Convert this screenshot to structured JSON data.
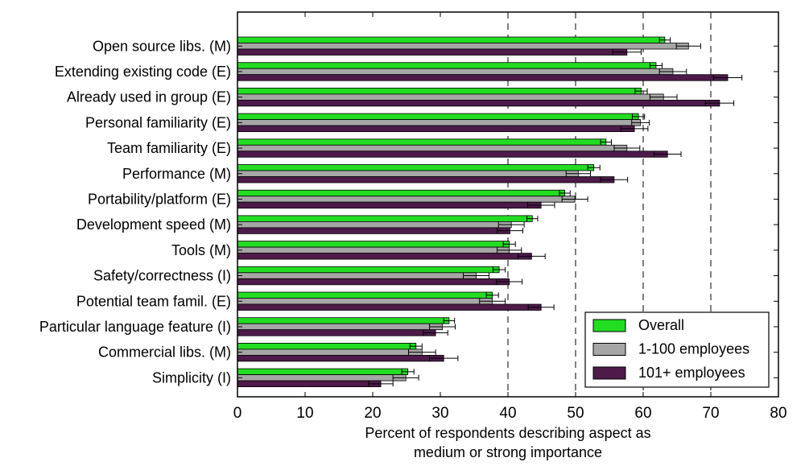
{
  "chart_data": {
    "type": "bar",
    "orientation": "horizontal",
    "title": "",
    "xlabel_lines": [
      "Percent of respondents describing aspect as",
      "medium or strong importance"
    ],
    "ylabel": "",
    "xlim": [
      0,
      80
    ],
    "xticks": [
      0,
      10,
      20,
      30,
      40,
      50,
      60,
      70,
      80
    ],
    "grid_lines": [
      40,
      50,
      60,
      70
    ],
    "legend_position": "lower-right",
    "categories": [
      "Open source libs. (M)",
      "Extending existing code (E)",
      "Already used in group (E)",
      "Personal familiarity (E)",
      "Team familiarity (E)",
      "Performance (M)",
      "Portability/platform (E)",
      "Development speed (M)",
      "Tools (M)",
      "Safety/correctness (I)",
      "Potential team famil. (E)",
      "Particular language feature (I)",
      "Commercial libs. (M)",
      "Simplicity (I)"
    ],
    "series": [
      {
        "name": "Overall",
        "color": "#22dd22",
        "values": [
          63.2,
          61.9,
          59.7,
          59.3,
          54.5,
          52.7,
          48.4,
          43.6,
          40.2,
          38.7,
          37.7,
          31.3,
          26.4,
          25.2
        ],
        "error": [
          0.8,
          0.9,
          0.9,
          0.9,
          0.8,
          0.9,
          0.8,
          0.8,
          0.9,
          0.9,
          0.9,
          0.8,
          0.9,
          0.9
        ]
      },
      {
        "name": "1-100 employees",
        "color": "#a6a6a6",
        "values": [
          66.7,
          64.4,
          63.0,
          59.6,
          57.6,
          50.4,
          49.9,
          40.5,
          40.2,
          35.3,
          37.7,
          30.3,
          27.3,
          24.9
        ],
        "error": [
          1.8,
          2.0,
          2.0,
          1.3,
          1.9,
          1.8,
          1.9,
          1.9,
          1.8,
          1.9,
          1.9,
          1.9,
          2.0,
          1.9
        ]
      },
      {
        "name": "101+ employees",
        "color": "#4d1a4a",
        "values": [
          57.6,
          72.5,
          71.3,
          58.7,
          63.6,
          55.7,
          44.9,
          40.3,
          43.5,
          40.2,
          44.9,
          29.3,
          30.5,
          21.2
        ],
        "error": [
          2.1,
          2.1,
          2.1,
          2.0,
          2.0,
          2.0,
          2.0,
          1.9,
          2.0,
          1.9,
          1.9,
          1.8,
          2.1,
          1.8
        ]
      }
    ]
  }
}
